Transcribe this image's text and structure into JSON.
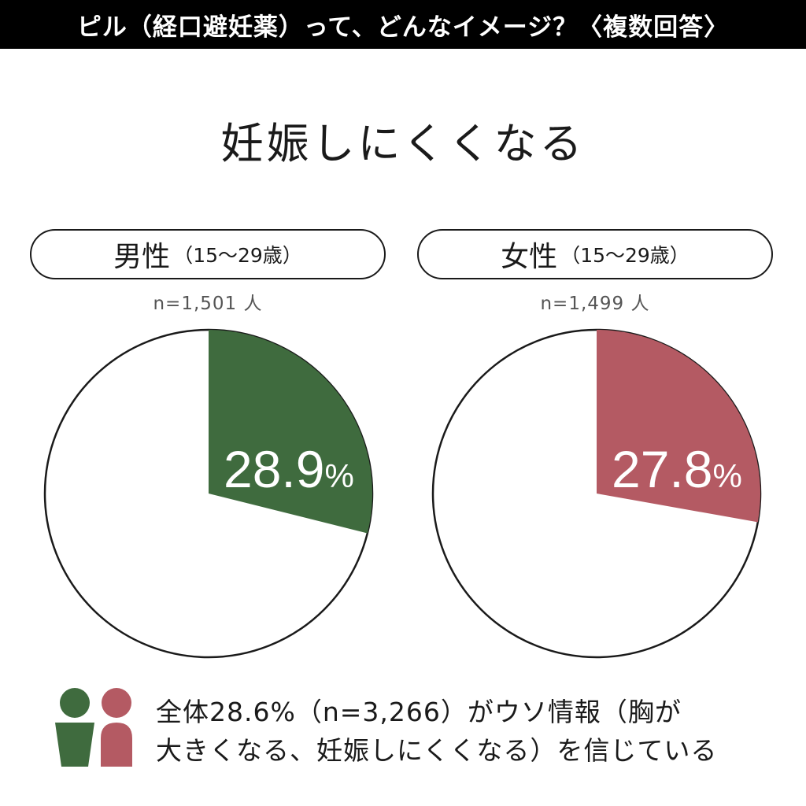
{
  "header": {
    "banner_text": "ピル（経口避妊薬）って、どんなイメージ？〈複数回答〉"
  },
  "main_title": "妊娠しにくくなる",
  "colors": {
    "male": "#3f6b3e",
    "female": "#b45a63",
    "banner_bg": "#000000"
  },
  "groups": {
    "male": {
      "gender_label": "男性",
      "age_label": "（15〜29歳）",
      "sample": "n=1,501 人",
      "percent_text": "28.9",
      "percent_sign": "%"
    },
    "female": {
      "gender_label": "女性",
      "age_label": "（15〜29歳）",
      "sample": "n=1,499 人",
      "percent_text": "27.8",
      "percent_sign": "%"
    }
  },
  "chart_data": [
    {
      "type": "pie",
      "title": "男性（15〜29歳）",
      "categories": [
        "妊娠しにくくなる",
        ""
      ],
      "values": [
        28.9,
        71.1
      ],
      "colors": [
        "#3f6b3e",
        "#ffffff"
      ]
    },
    {
      "type": "pie",
      "title": "女性（15〜29歳）",
      "categories": [
        "妊娠しにくくなる",
        ""
      ],
      "values": [
        27.8,
        72.2
      ],
      "colors": [
        "#b45a63",
        "#ffffff"
      ]
    }
  ],
  "footer": {
    "line1": "全体28.6%（n=3,266）がウソ情報（胸が",
    "line2": "大きくなる、妊娠しにくくなる）を信じている"
  }
}
